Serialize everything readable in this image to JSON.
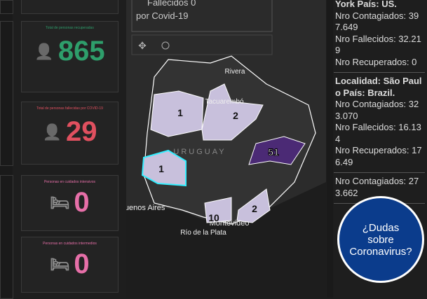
{
  "cards": [
    {
      "label": "Total de personas recuperadas",
      "value": "865",
      "color": "#2e9e6b"
    },
    {
      "label": "Total de personas fallecidas por COVID-19",
      "value": "29",
      "color": "#e0505f"
    },
    {
      "label": "Personas en cuidados intensivos",
      "value": "0",
      "color": "#e66fa8"
    },
    {
      "label": "Personas en cuidados intermedios",
      "value": "0",
      "color": "#e66fa8"
    }
  ],
  "popup": {
    "line1": "Fallecidos 0",
    "line2": "por Covid-19"
  },
  "map": {
    "places": [
      "Rivera",
      "Tacuarembó",
      "URUGUAY",
      "Buenos Aires",
      "Montevideo",
      "Río de la Plata"
    ],
    "counts": [
      "1",
      "2",
      "51",
      "1",
      "10",
      "2"
    ]
  },
  "list": [
    {
      "head": "York País: US.",
      "lines": [
        "Nro Contagiados: 397.649",
        "Nro Fallecidos: 32.219",
        "Nro Recuperados: 0"
      ]
    },
    {
      "head": "Localidad: São Paulo País: Brazil.",
      "lines": [
        "Nro Contagiados: 323.070",
        "Nro Fallecidos: 16.134",
        "Nro Recuperados: 176.49"
      ]
    },
    {
      "head": "",
      "lines": [
        "Nro Contagiados: 273.662"
      ]
    }
  ],
  "help": "¿Dudas sobre Coronavirus?"
}
